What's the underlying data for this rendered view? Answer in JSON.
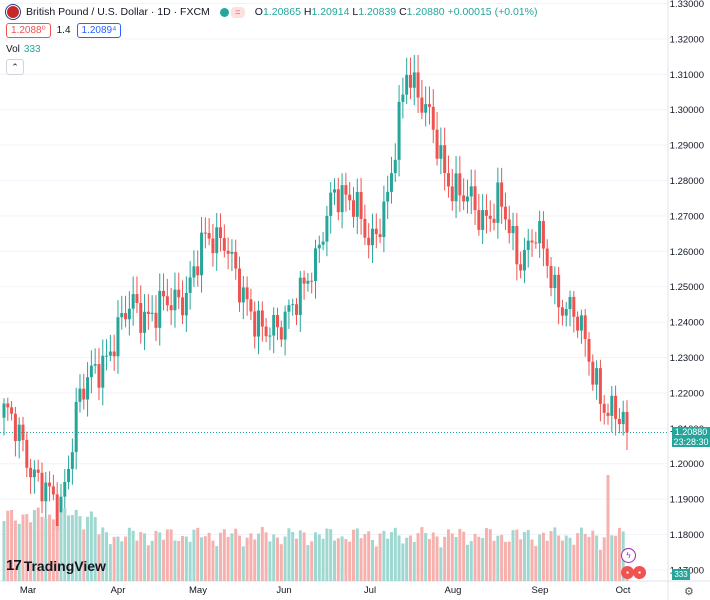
{
  "header": {
    "symbol": "British Pound / U.S. Dollar · 1D · FXCM",
    "eq_label": "=",
    "open": "1.20865",
    "high": "1.20914",
    "low": "1.20839",
    "close": "1.20880",
    "change": "+0.00015 (+0.01%)",
    "sell_price": "1.2088⁰",
    "spread": "1.4",
    "buy_price": "1.2089⁴",
    "vol_label": "Vol",
    "vol_value": "333",
    "collapse_glyph": "⌃"
  },
  "price_tag": {
    "price": "1.20880",
    "countdown": "23:28:30"
  },
  "vol_tag": "333",
  "logo": {
    "mark": "17",
    "text": "TradingView"
  },
  "colors": {
    "up": "#26a69a",
    "down": "#ef5350",
    "up_vol": "#9fd8d0",
    "down_vol": "#f6b1ae",
    "grid": "#f0f3fa"
  },
  "chart_data": {
    "type": "candlestick",
    "y_ticks": [
      "1.17000",
      "1.18000",
      "1.19000",
      "1.20000",
      "1.21000",
      "1.22000",
      "1.23000",
      "1.24000",
      "1.25000",
      "1.26000",
      "1.27000",
      "1.28000",
      "1.29000",
      "1.30000",
      "1.31000",
      "1.32000",
      "1.33000"
    ],
    "ylim": [
      1.167,
      1.3305
    ],
    "x_labels": [
      "Mar",
      "Apr",
      "May",
      "Jun",
      "Jul",
      "Aug",
      "Sep",
      "Oct"
    ],
    "close_points": [
      [
        "Feb 20",
        1.215
      ],
      [
        "Feb 27",
        1.205
      ],
      [
        "Mar 3",
        1.195
      ],
      [
        "Mar 8",
        1.184
      ],
      [
        "Mar 14",
        1.218
      ],
      [
        "Mar 21",
        1.225
      ],
      [
        "Mar 31",
        1.236
      ],
      [
        "Apr 6",
        1.244
      ],
      [
        "Apr 14",
        1.243
      ],
      [
        "Apr 25",
        1.244
      ],
      [
        "Apr 28",
        1.25
      ],
      [
        "May 5",
        1.262
      ],
      [
        "May 10",
        1.266
      ],
      [
        "May 16",
        1.245
      ],
      [
        "May 23",
        1.241
      ],
      [
        "May 26",
        1.235
      ],
      [
        "Jun 1",
        1.25
      ],
      [
        "Jun 7",
        1.254
      ],
      [
        "Jun 16",
        1.28
      ],
      [
        "Jun 23",
        1.272
      ],
      [
        "Jun 29",
        1.264
      ],
      [
        "Jul 6",
        1.274
      ],
      [
        "Jul 13",
        1.314
      ],
      [
        "Jul 18",
        1.299
      ],
      [
        "Jul 27",
        1.284
      ],
      [
        "Aug 2",
        1.275
      ],
      [
        "Aug 10",
        1.27
      ],
      [
        "Aug 18",
        1.274
      ],
      [
        "Aug 25",
        1.258
      ],
      [
        "Aug 31",
        1.266
      ],
      [
        "Sep 7",
        1.249
      ],
      [
        "Sep 14",
        1.244
      ],
      [
        "Sep 21",
        1.228
      ],
      [
        "Sep 27",
        1.215
      ],
      [
        "Oct 2",
        1.209
      ]
    ],
    "volume_last": 333
  }
}
